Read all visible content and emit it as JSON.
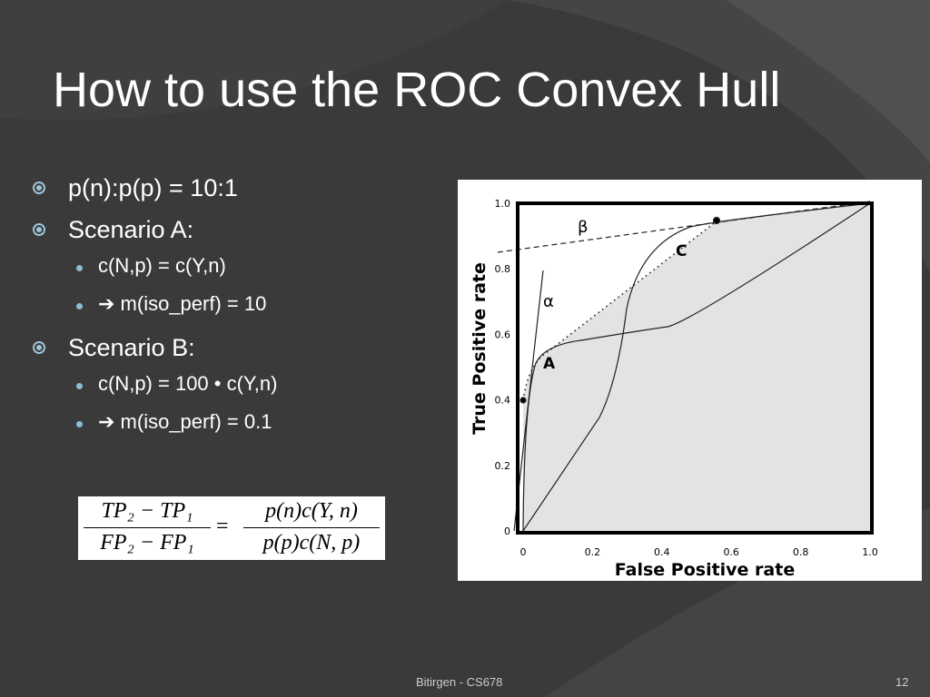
{
  "title": "How to use the ROC Convex Hull",
  "bullets": [
    {
      "text": "p(n):p(p) = 10:1",
      "sub": []
    },
    {
      "text": "Scenario A:",
      "sub": [
        "c(N,p) = c(Y,n)",
        "➔ m(iso_perf) = 10"
      ]
    },
    {
      "text": "Scenario B:",
      "sub": [
        "c(N,p) = 100 • c(Y,n)",
        "➔ m(iso_perf) = 0.1"
      ]
    }
  ],
  "formula": {
    "left_num": "TP₂ − TP₁",
    "left_den": "FP₂ − FP₁",
    "equals": "=",
    "right_num": "p(n)c(Y, n)",
    "right_den": "p(p)c(N, p)"
  },
  "figure": {
    "x_label": "False Positive rate",
    "y_label": "True Positive rate",
    "xticks": [
      "0",
      "0.2",
      "0.4",
      "0.6",
      "0.8",
      "1.0"
    ],
    "yticks": [
      "0",
      "0.2",
      "0.4",
      "0.6",
      "0.8",
      "1.0"
    ],
    "curve_labels": [
      "A",
      "C",
      "α",
      "β"
    ]
  },
  "footer": {
    "author": "Bitirgen - CS678",
    "page": "12"
  }
}
